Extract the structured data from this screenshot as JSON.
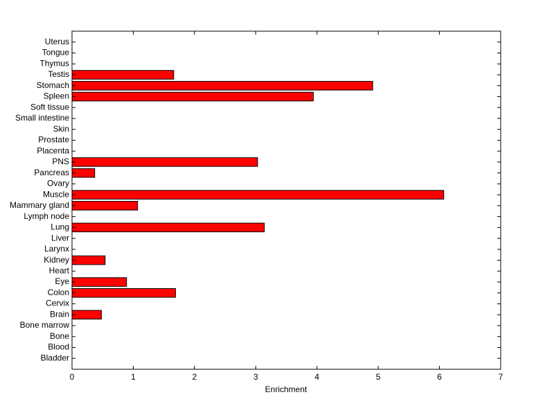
{
  "chart_data": {
    "type": "barh",
    "categories": [
      "Bladder",
      "Blood",
      "Bone",
      "Bone marrow",
      "Brain",
      "Cervix",
      "Colon",
      "Eye",
      "Heart",
      "Kidney",
      "Larynx",
      "Liver",
      "Lung",
      "Lymph node",
      "Mammary gland",
      "Muscle",
      "Ovary",
      "Pancreas",
      "PNS",
      "Placenta",
      "Prostate",
      "Skin",
      "Small intestine",
      "Soft tissue",
      "Spleen",
      "Stomach",
      "Testis",
      "Thymus",
      "Tongue",
      "Uterus"
    ],
    "values": [
      0,
      0,
      0,
      0,
      0.48,
      0,
      1.69,
      0.89,
      0,
      0.54,
      0,
      0,
      3.14,
      0,
      1.07,
      6.07,
      0,
      0.37,
      3.03,
      0,
      0,
      0,
      0,
      0,
      3.94,
      4.91,
      1.66,
      0,
      0,
      0
    ],
    "color": "#ff0000",
    "xlabel": "Enrichment",
    "xlim": [
      0,
      7
    ],
    "xticks": [
      0,
      1,
      2,
      3,
      4,
      5,
      6,
      7
    ]
  }
}
